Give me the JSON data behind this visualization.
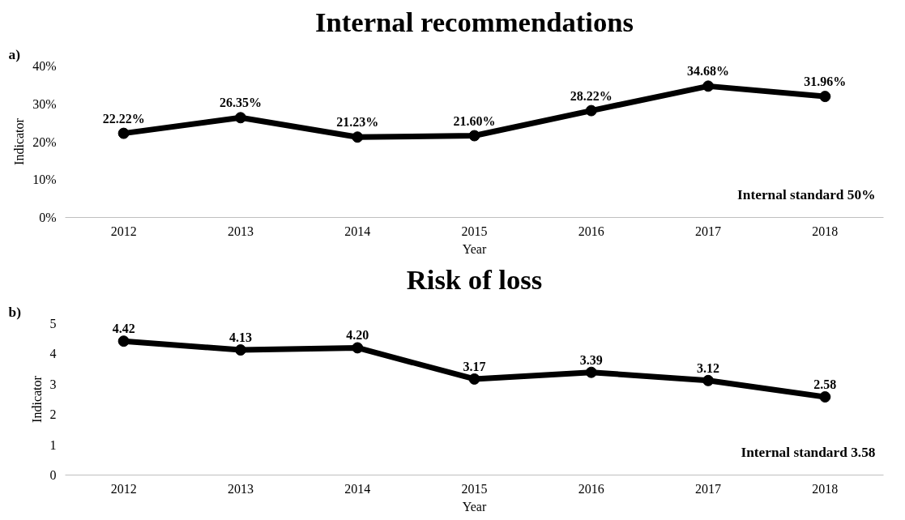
{
  "chart_data": [
    {
      "type": "line",
      "title": "Internal recommendations",
      "xlabel": "Year",
      "ylabel": "Indicator",
      "categories": [
        "2012",
        "2013",
        "2014",
        "2015",
        "2016",
        "2017",
        "2018"
      ],
      "series": [
        {
          "color": "#000000",
          "values": [
            22.22,
            26.35,
            21.23,
            21.6,
            28.22,
            34.68,
            31.96
          ],
          "value_labels": [
            "22.22%",
            "26.35%",
            "21.23%",
            "21.60%",
            "28.22%",
            "34.68%",
            "31.96%"
          ]
        }
      ],
      "ylim": [
        0,
        40
      ],
      "yticks": [
        {
          "value": 0,
          "label": "0%"
        },
        {
          "value": 10,
          "label": "10%"
        },
        {
          "value": 20,
          "label": "20%"
        },
        {
          "value": 30,
          "label": "30%"
        },
        {
          "value": 40,
          "label": "40%"
        }
      ],
      "marker": "circle",
      "line_style": "solid",
      "grid": false,
      "annotations": [
        "a)",
        "Internal standard 50%"
      ]
    },
    {
      "type": "line",
      "title": "Risk of loss",
      "xlabel": "Year",
      "ylabel": "Indicator",
      "categories": [
        "2012",
        "2013",
        "2014",
        "2015",
        "2016",
        "2017",
        "2018"
      ],
      "series": [
        {
          "color": "#000000",
          "values": [
            4.42,
            4.13,
            4.2,
            3.17,
            3.39,
            3.12,
            2.58
          ],
          "value_labels": [
            "4.42",
            "4.13",
            "4.20",
            "3.17",
            "3.39",
            "3.12",
            "2.58"
          ]
        }
      ],
      "ylim": [
        0,
        5
      ],
      "yticks": [
        0,
        1,
        2,
        3,
        4,
        5
      ],
      "marker": "circle",
      "line_style": "solid",
      "grid": false,
      "annotations": [
        "b)",
        "Internal standard 3.58"
      ]
    }
  ]
}
